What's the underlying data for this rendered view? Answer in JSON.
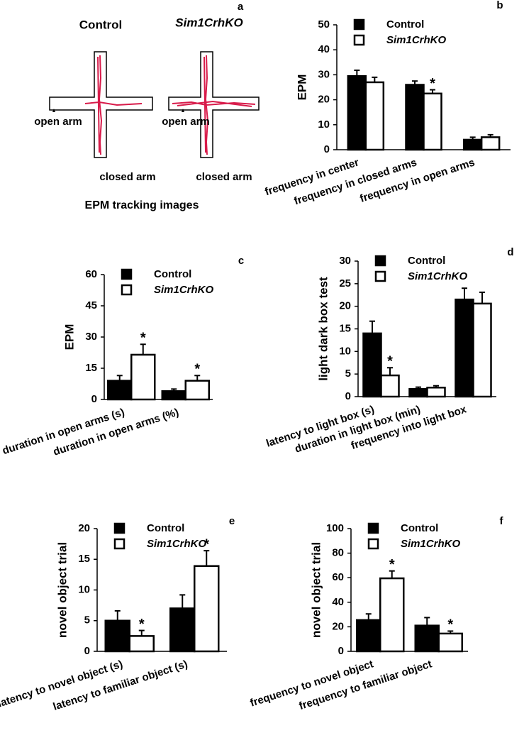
{
  "panel_a": {
    "label": "a",
    "titles": [
      "Control",
      "Sim1CrhKO"
    ],
    "open_arm": [
      "open arm",
      "open arm"
    ],
    "closed_arm": [
      "closed arm",
      "closed arm"
    ],
    "caption": "EPM tracking images"
  },
  "chart_data": [
    {
      "type": "bar",
      "panel": "b",
      "ylabel": "EPM",
      "legend": "upper left",
      "categories": [
        "frequency in center",
        "frequency in closed arms",
        "frequency in open arms"
      ],
      "series": [
        {
          "name": "Control",
          "color": "#000000",
          "values": [
            29.5,
            26,
            4
          ],
          "errors": [
            2.3,
            1.5,
            1
          ]
        },
        {
          "name": "Sim1CrhKO",
          "color": "#ffffff",
          "values": [
            27,
            22.5,
            5
          ],
          "errors": [
            2,
            1.5,
            1
          ],
          "significance": [
            null,
            "*",
            null
          ]
        }
      ],
      "ylim": [
        0,
        50
      ],
      "yticks": [
        0,
        10,
        20,
        30,
        40,
        50
      ]
    },
    {
      "type": "bar",
      "panel": "c",
      "ylabel": "EPM",
      "legend": "upper left",
      "categories": [
        "duration in open arms (s)",
        "duration in open arms (%)"
      ],
      "series": [
        {
          "name": "Control",
          "color": "#000000",
          "values": [
            9,
            4
          ],
          "errors": [
            2.5,
            1
          ]
        },
        {
          "name": "Sim1CrhKO",
          "color": "#ffffff",
          "values": [
            21.5,
            9
          ],
          "errors": [
            5,
            2.5
          ],
          "significance": [
            "*",
            "*"
          ]
        }
      ],
      "ylim": [
        0,
        60
      ],
      "yticks": [
        0,
        15,
        30,
        45,
        60
      ]
    },
    {
      "type": "bar",
      "panel": "d",
      "ylabel": "light dark box test",
      "legend": "upper left",
      "categories": [
        "latency to light box (s)",
        "duration in light box (min)",
        "frequency into light box"
      ],
      "series": [
        {
          "name": "Control",
          "color": "#000000",
          "values": [
            14,
            1.7,
            21.5
          ],
          "errors": [
            2.7,
            0.4,
            2.5
          ]
        },
        {
          "name": "Sim1CrhKO",
          "color": "#ffffff",
          "values": [
            4.7,
            2,
            20.6
          ],
          "errors": [
            1.7,
            0.4,
            2.5
          ],
          "significance": [
            "*",
            null,
            null
          ]
        }
      ],
      "ylim": [
        0,
        30
      ],
      "yticks": [
        0,
        5,
        10,
        15,
        20,
        25,
        30
      ]
    },
    {
      "type": "bar",
      "panel": "e",
      "ylabel": "novel object trial",
      "legend": "upper left",
      "categories": [
        "latency to novel object (s)",
        "latency to familiar object (s)"
      ],
      "series": [
        {
          "name": "Control",
          "color": "#000000",
          "values": [
            5,
            7
          ],
          "errors": [
            1.6,
            2.2
          ]
        },
        {
          "name": "Sim1CrhKO",
          "color": "#ffffff",
          "values": [
            2.5,
            13.9
          ],
          "errors": [
            0.9,
            2.5
          ],
          "significance": [
            "*",
            "*"
          ]
        }
      ],
      "ylim": [
        0,
        20
      ],
      "yticks": [
        0,
        5,
        10,
        15,
        20
      ]
    },
    {
      "type": "bar",
      "panel": "f",
      "ylabel": "novel object trial",
      "legend": "upper left",
      "categories": [
        "frequency to novel object",
        "frequency to familiar object"
      ],
      "series": [
        {
          "name": "Control",
          "color": "#000000",
          "values": [
            25.5,
            21
          ],
          "errors": [
            5,
            6.5
          ]
        },
        {
          "name": "Sim1CrhKO",
          "color": "#ffffff",
          "values": [
            59.5,
            14.5
          ],
          "errors": [
            6,
            2
          ],
          "significance": [
            "*",
            "*"
          ]
        }
      ],
      "ylim": [
        0,
        100
      ],
      "yticks": [
        0,
        20,
        40,
        60,
        80,
        100
      ]
    }
  ]
}
